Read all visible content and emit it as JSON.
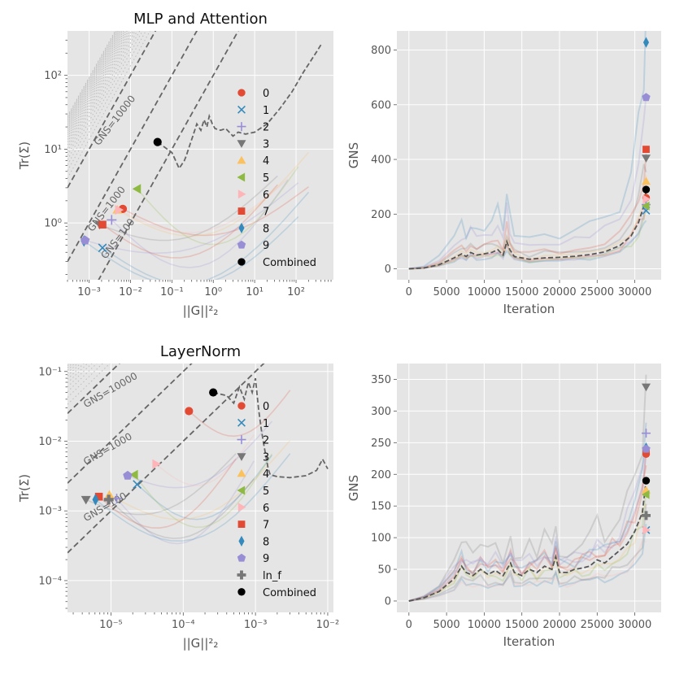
{
  "colors": [
    "#E24A33",
    "#348ABD",
    "#988ED5",
    "#777777",
    "#FBC15E",
    "#8EBA42",
    "#FFB5B8",
    "#E24A33",
    "#348ABD",
    "#988ED5"
  ],
  "chart_data": [
    {
      "id": "p1",
      "type": "scatter",
      "title": "MLP and Attention",
      "xlabel": "||G||²₂",
      "ylabel": "Tr(Σ)",
      "xscale": "log",
      "yscale": "log",
      "xlim": [
        0.0003,
        800
      ],
      "ylim": [
        0.17,
        400
      ],
      "xticks": [
        {
          "v": 0.001,
          "t": "10⁻³"
        },
        {
          "v": 0.01,
          "t": "10⁻²"
        },
        {
          "v": 0.1,
          "t": "10⁻¹"
        },
        {
          "v": 1,
          "t": "10⁰"
        },
        {
          "v": 10,
          "t": "10¹"
        },
        {
          "v": 100,
          "t": "10²"
        }
      ],
      "yticks": [
        {
          "v": 1,
          "t": "10⁰"
        },
        {
          "v": 10,
          "t": "10¹"
        },
        {
          "v": 100,
          "t": "10²"
        }
      ],
      "gns_lines": [
        {
          "label": "GNS=10000",
          "k": 10000
        },
        {
          "label": "GNS=1000",
          "k": 1000
        },
        {
          "label": "GNS=100",
          "k": 100
        }
      ],
      "points": [
        {
          "label": "0",
          "marker": "circle",
          "x": 0.0065,
          "y": 1.55
        },
        {
          "label": "1",
          "marker": "x",
          "x": 0.0021,
          "y": 0.46
        },
        {
          "label": "2",
          "marker": "plus",
          "x": 0.0035,
          "y": 1.1
        },
        {
          "label": "3",
          "marker": "tridown",
          "x": 0.0018,
          "y": 0.95
        },
        {
          "label": "4",
          "marker": "triup",
          "x": 0.0048,
          "y": 1.5
        },
        {
          "label": "5",
          "marker": "trileft",
          "x": 0.0145,
          "y": 2.9
        },
        {
          "label": "6",
          "marker": "triright",
          "x": 0.0052,
          "y": 1.5
        },
        {
          "label": "7",
          "marker": "square",
          "x": 0.0021,
          "y": 0.95
        },
        {
          "label": "8",
          "marker": "diamond",
          "x": 0.00075,
          "y": 0.57
        },
        {
          "label": "9",
          "marker": "pentagon",
          "x": 0.0008,
          "y": 0.58
        },
        {
          "label": "Combined",
          "marker": "dot",
          "x": 0.045,
          "y": 12.5
        }
      ],
      "combined_trace": [
        [
          0.045,
          12.5
        ],
        [
          0.1,
          9
        ],
        [
          0.15,
          5.5
        ],
        [
          0.2,
          7
        ],
        [
          0.22,
          8
        ],
        [
          0.28,
          12
        ],
        [
          0.32,
          15
        ],
        [
          0.4,
          22
        ],
        [
          0.5,
          18
        ],
        [
          0.6,
          25
        ],
        [
          0.7,
          20
        ],
        [
          0.8,
          28
        ],
        [
          0.95,
          22
        ],
        [
          1.1,
          19
        ],
        [
          1.5,
          18
        ],
        [
          2,
          19
        ],
        [
          3,
          15
        ],
        [
          4,
          17
        ],
        [
          6,
          16
        ],
        [
          10,
          17
        ],
        [
          20,
          22
        ],
        [
          40,
          35
        ],
        [
          80,
          60
        ],
        [
          150,
          110
        ],
        [
          300,
          200
        ],
        [
          400,
          260
        ]
      ],
      "legend": [
        "0",
        "1",
        "2",
        "3",
        "4",
        "5",
        "6",
        "7",
        "8",
        "9",
        "Combined"
      ]
    },
    {
      "id": "p2",
      "type": "line",
      "title": "",
      "xlabel": "Iteration",
      "ylabel": "GNS",
      "xlim": [
        -1600,
        33500
      ],
      "ylim": [
        -40,
        870
      ],
      "xticks": [
        {
          "v": 0,
          "t": "0"
        },
        {
          "v": 5000,
          "t": "5000"
        },
        {
          "v": 10000,
          "t": "10000"
        },
        {
          "v": 15000,
          "t": "15000"
        },
        {
          "v": 20000,
          "t": "20000"
        },
        {
          "v": 25000,
          "t": "25000"
        },
        {
          "v": 30000,
          "t": "30000"
        }
      ],
      "yticks": [
        {
          "v": 0,
          "t": "0"
        },
        {
          "v": 200,
          "t": "200"
        },
        {
          "v": 400,
          "t": "400"
        },
        {
          "v": 600,
          "t": "600"
        },
        {
          "v": 800,
          "t": "800"
        }
      ],
      "combined_series": [
        [
          0,
          0
        ],
        [
          2000,
          3
        ],
        [
          4000,
          15
        ],
        [
          6000,
          40
        ],
        [
          7000,
          55
        ],
        [
          7600,
          45
        ],
        [
          8200,
          60
        ],
        [
          9000,
          50
        ],
        [
          10000,
          55
        ],
        [
          11000,
          60
        ],
        [
          11800,
          70
        ],
        [
          12500,
          50
        ],
        [
          13000,
          100
        ],
        [
          13400,
          70
        ],
        [
          14000,
          45
        ],
        [
          16000,
          35
        ],
        [
          18000,
          40
        ],
        [
          20000,
          42
        ],
        [
          22000,
          46
        ],
        [
          24000,
          52
        ],
        [
          26000,
          62
        ],
        [
          28000,
          85
        ],
        [
          29500,
          120
        ],
        [
          30500,
          170
        ],
        [
          31200,
          230
        ],
        [
          31500,
          285
        ]
      ],
      "end_points": [
        {
          "label": "0",
          "marker": "circle",
          "y": 260
        },
        {
          "label": "1",
          "marker": "x",
          "y": 213
        },
        {
          "label": "2",
          "marker": "plus",
          "y": 235
        },
        {
          "label": "3",
          "marker": "tridown",
          "y": 405
        },
        {
          "label": "4",
          "marker": "triup",
          "y": 320
        },
        {
          "label": "5",
          "marker": "trileft",
          "y": 230
        },
        {
          "label": "6",
          "marker": "triright",
          "y": 255
        },
        {
          "label": "7",
          "marker": "square",
          "y": 437
        },
        {
          "label": "8",
          "marker": "diamond",
          "y": 828
        },
        {
          "label": "9",
          "marker": "pentagon",
          "y": 627
        },
        {
          "label": "Combined",
          "marker": "dot",
          "y": 290
        }
      ]
    },
    {
      "id": "p3",
      "type": "scatter",
      "title": "LayerNorm",
      "xlabel": "||G||²₂",
      "ylabel": "Tr(Σ)",
      "xscale": "log",
      "yscale": "log",
      "xlim": [
        2.5e-06,
        0.012
      ],
      "ylim": [
        3.5e-05,
        0.13
      ],
      "xticks": [
        {
          "v": 1e-05,
          "t": "10⁻⁵"
        },
        {
          "v": 0.0001,
          "t": "10⁻⁴"
        },
        {
          "v": 0.001,
          "t": "10⁻³"
        },
        {
          "v": 0.01,
          "t": "10⁻²"
        }
      ],
      "yticks": [
        {
          "v": 0.0001,
          "t": "10⁻⁴"
        },
        {
          "v": 0.001,
          "t": "10⁻³"
        },
        {
          "v": 0.01,
          "t": "10⁻²"
        },
        {
          "v": 0.1,
          "t": "10⁻¹"
        }
      ],
      "gns_lines": [
        {
          "label": "GNS=10000",
          "k": 10000
        },
        {
          "label": "GNS=1000",
          "k": 1000
        },
        {
          "label": "GNS=100",
          "k": 100
        }
      ],
      "points": [
        {
          "label": "0",
          "marker": "circle",
          "x": 0.00012,
          "y": 0.027
        },
        {
          "label": "1",
          "marker": "x",
          "x": 2.3e-05,
          "y": 0.0024
        },
        {
          "label": "2",
          "marker": "plus",
          "x": 1.2e-05,
          "y": 0.0015
        },
        {
          "label": "3",
          "marker": "tridown",
          "x": 4.5e-06,
          "y": 0.00145
        },
        {
          "label": "4",
          "marker": "triup",
          "x": 9.5e-06,
          "y": 0.0017
        },
        {
          "label": "5",
          "marker": "trileft",
          "x": 2.1e-05,
          "y": 0.0033
        },
        {
          "label": "6",
          "marker": "triright",
          "x": 4.2e-05,
          "y": 0.0047
        },
        {
          "label": "7",
          "marker": "square",
          "x": 6.8e-06,
          "y": 0.0016
        },
        {
          "label": "8",
          "marker": "diamond",
          "x": 6.1e-06,
          "y": 0.00145
        },
        {
          "label": "9",
          "marker": "pentagon",
          "x": 1.7e-05,
          "y": 0.0032
        },
        {
          "label": "ln_f",
          "marker": "cross",
          "x": 9.3e-06,
          "y": 0.00145
        },
        {
          "label": "Combined",
          "marker": "dot",
          "x": 0.00026,
          "y": 0.05
        }
      ],
      "combined_trace": [
        [
          0.00026,
          0.05
        ],
        [
          0.0004,
          0.045
        ],
        [
          0.0005,
          0.035
        ],
        [
          0.0006,
          0.06
        ],
        [
          0.0007,
          0.04
        ],
        [
          0.0008,
          0.07
        ],
        [
          0.0009,
          0.05
        ],
        [
          0.001,
          0.08
        ],
        [
          0.0011,
          0.03
        ],
        [
          0.0012,
          0.015
        ],
        [
          0.0013,
          0.009
        ],
        [
          0.0014,
          0.006
        ],
        [
          0.0015,
          0.004
        ],
        [
          0.0016,
          0.0033
        ],
        [
          0.002,
          0.0031
        ],
        [
          0.003,
          0.003
        ],
        [
          0.005,
          0.0032
        ],
        [
          0.007,
          0.0038
        ],
        [
          0.0085,
          0.0055
        ],
        [
          0.01,
          0.004
        ]
      ],
      "legend": [
        "0",
        "1",
        "2",
        "3",
        "4",
        "5",
        "6",
        "7",
        "8",
        "9",
        "ln_f",
        "Combined"
      ]
    },
    {
      "id": "p4",
      "type": "line",
      "title": "",
      "xlabel": "Iteration",
      "ylabel": "GNS",
      "xlim": [
        -1600,
        33500
      ],
      "ylim": [
        -18,
        375
      ],
      "xticks": [
        {
          "v": 0,
          "t": "0"
        },
        {
          "v": 5000,
          "t": "5000"
        },
        {
          "v": 10000,
          "t": "10000"
        },
        {
          "v": 15000,
          "t": "15000"
        },
        {
          "v": 20000,
          "t": "20000"
        },
        {
          "v": 25000,
          "t": "25000"
        },
        {
          "v": 30000,
          "t": "30000"
        }
      ],
      "yticks": [
        {
          "v": 0,
          "t": "0"
        },
        {
          "v": 50,
          "t": "50"
        },
        {
          "v": 100,
          "t": "100"
        },
        {
          "v": 150,
          "t": "150"
        },
        {
          "v": 200,
          "t": "200"
        },
        {
          "v": 250,
          "t": "250"
        },
        {
          "v": 300,
          "t": "300"
        },
        {
          "v": 350,
          "t": "350"
        }
      ],
      "combined_series": [
        [
          0,
          0
        ],
        [
          2000,
          5
        ],
        [
          4000,
          15
        ],
        [
          6000,
          35
        ],
        [
          7000,
          55
        ],
        [
          7600,
          45
        ],
        [
          8500,
          40
        ],
        [
          9500,
          50
        ],
        [
          10500,
          42
        ],
        [
          11500,
          48
        ],
        [
          12500,
          40
        ],
        [
          13500,
          60
        ],
        [
          14000,
          45
        ],
        [
          15000,
          40
        ],
        [
          16000,
          50
        ],
        [
          17000,
          45
        ],
        [
          18000,
          55
        ],
        [
          19000,
          50
        ],
        [
          19500,
          70
        ],
        [
          20000,
          45
        ],
        [
          21000,
          45
        ],
        [
          22000,
          50
        ],
        [
          23000,
          52
        ],
        [
          24000,
          55
        ],
        [
          25000,
          65
        ],
        [
          26000,
          60
        ],
        [
          27000,
          70
        ],
        [
          28000,
          80
        ],
        [
          29000,
          90
        ],
        [
          30000,
          110
        ],
        [
          31000,
          140
        ],
        [
          31500,
          190
        ]
      ],
      "end_points": [
        {
          "label": "0",
          "marker": "circle",
          "y": 232
        },
        {
          "label": "1",
          "marker": "x",
          "y": 112
        },
        {
          "label": "2",
          "marker": "plus",
          "y": 265
        },
        {
          "label": "3",
          "marker": "tridown",
          "y": 338
        },
        {
          "label": "4",
          "marker": "triup",
          "y": 175
        },
        {
          "label": "5",
          "marker": "trileft",
          "y": 168
        },
        {
          "label": "6",
          "marker": "triright",
          "y": 112
        },
        {
          "label": "7",
          "marker": "square",
          "y": 236
        },
        {
          "label": "8",
          "marker": "diamond",
          "y": 242
        },
        {
          "label": "9",
          "marker": "pentagon",
          "y": 240
        },
        {
          "label": "ln_f",
          "marker": "cross",
          "y": 135
        },
        {
          "label": "Combined",
          "marker": "dot",
          "y": 190
        }
      ]
    }
  ]
}
